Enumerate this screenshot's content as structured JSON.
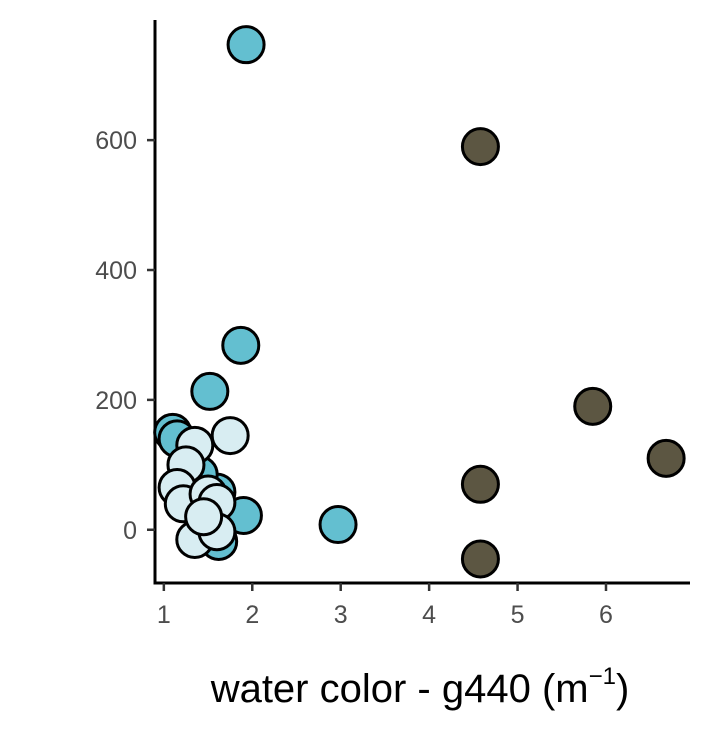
{
  "chart_data": {
    "type": "scatter",
    "title": "",
    "xlabel": {
      "main": "water color - g440 (m",
      "superscript": "−1",
      "close": ")"
    },
    "ylabel": "",
    "xlim": [
      0.9,
      6.95
    ],
    "ylim": [
      -82,
      785
    ],
    "x_ticks": [
      1,
      2,
      3,
      4,
      5,
      6
    ],
    "y_ticks": [
      0,
      200,
      400,
      600
    ],
    "grid": false,
    "legend": "none",
    "colors": {
      "teal": "#63bfd0",
      "pale": "#d8edf2",
      "dark": "#5c5642",
      "outline": "#000000",
      "axis": "#000000",
      "tick_text": "#4d4d4d"
    },
    "series": [
      {
        "color": "teal",
        "points": [
          {
            "x": 1.93,
            "y": 747
          },
          {
            "x": 1.87,
            "y": 284
          },
          {
            "x": 1.52,
            "y": 213
          },
          {
            "x": 1.1,
            "y": 150
          },
          {
            "x": 1.15,
            "y": 140
          },
          {
            "x": 2.97,
            "y": 8
          },
          {
            "x": 1.9,
            "y": 22
          },
          {
            "x": 1.6,
            "y": 58
          },
          {
            "x": 1.62,
            "y": -18
          },
          {
            "x": 1.4,
            "y": 85
          }
        ]
      },
      {
        "color": "pale",
        "points": [
          {
            "x": 1.75,
            "y": 145
          },
          {
            "x": 1.35,
            "y": 130
          },
          {
            "x": 1.25,
            "y": 100
          },
          {
            "x": 1.15,
            "y": 65
          },
          {
            "x": 1.22,
            "y": 40
          },
          {
            "x": 1.5,
            "y": 55
          },
          {
            "x": 1.6,
            "y": 42
          },
          {
            "x": 1.35,
            "y": -15
          },
          {
            "x": 1.6,
            "y": -3
          },
          {
            "x": 1.45,
            "y": 20
          }
        ]
      },
      {
        "color": "dark",
        "points": [
          {
            "x": 4.58,
            "y": 590
          },
          {
            "x": 5.85,
            "y": 190
          },
          {
            "x": 6.68,
            "y": 110
          },
          {
            "x": 4.58,
            "y": 70
          },
          {
            "x": 4.58,
            "y": -45
          }
        ]
      }
    ]
  }
}
